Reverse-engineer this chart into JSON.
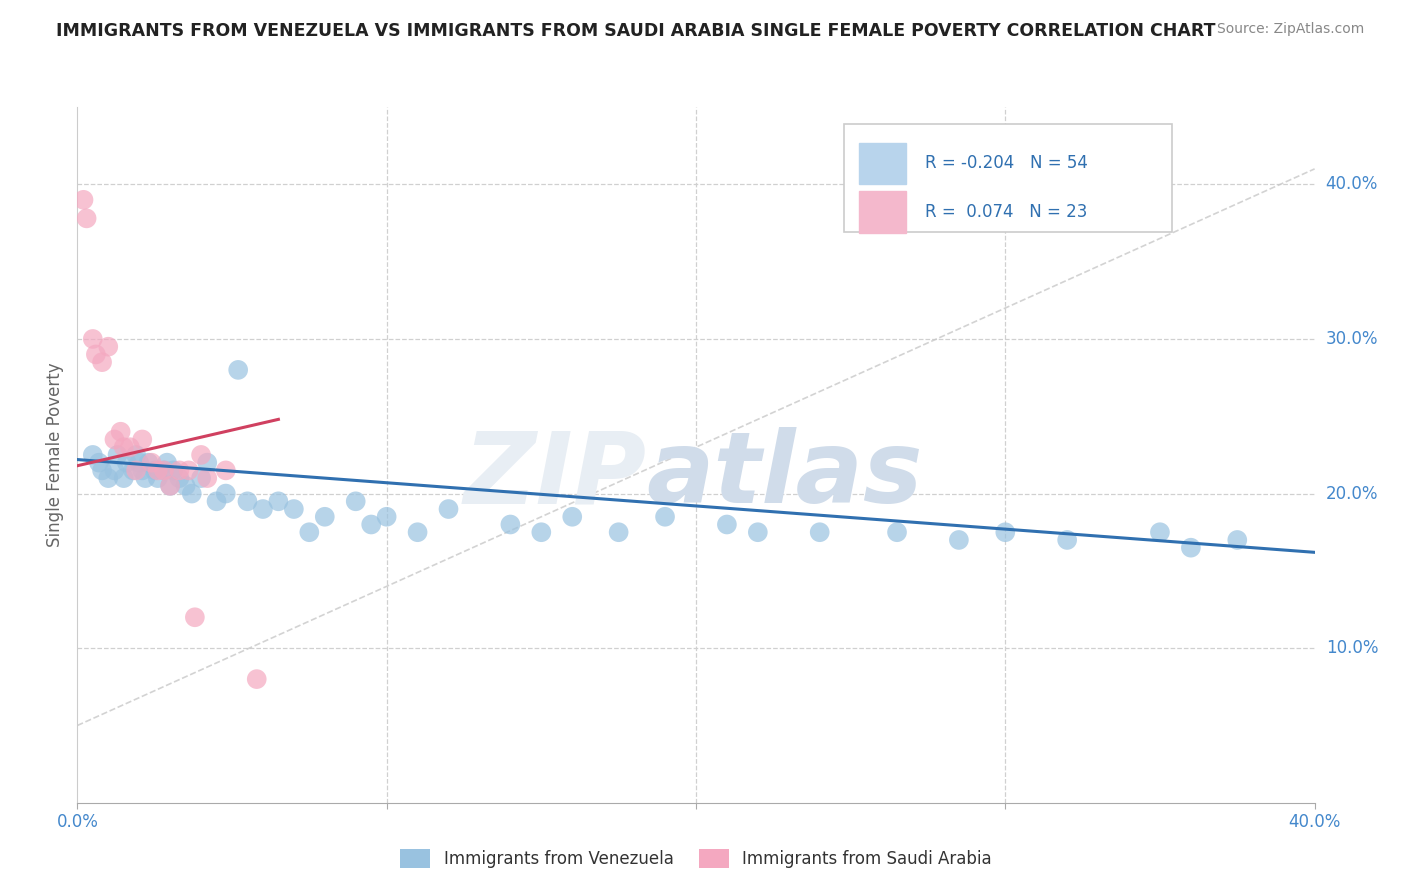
{
  "title": "IMMIGRANTS FROM VENEZUELA VS IMMIGRANTS FROM SAUDI ARABIA SINGLE FEMALE POVERTY CORRELATION CHART",
  "source": "Source: ZipAtlas.com",
  "ylabel": "Single Female Poverty",
  "xlim": [
    0,
    0.4
  ],
  "ylim": [
    0,
    0.45
  ],
  "xticks": [
    0.0,
    0.1,
    0.2,
    0.3,
    0.4
  ],
  "xtick_labels_bottom": [
    "0.0%",
    "",
    "",
    "",
    "40.0%"
  ],
  "yticks": [
    0.1,
    0.2,
    0.3,
    0.4
  ],
  "ytick_labels": [
    "10.0%",
    "20.0%",
    "30.0%",
    "40.0%"
  ],
  "venezuela_x": [
    0.005,
    0.007,
    0.008,
    0.01,
    0.012,
    0.013,
    0.015,
    0.016,
    0.018,
    0.019,
    0.02,
    0.021,
    0.022,
    0.023,
    0.025,
    0.026,
    0.028,
    0.029,
    0.03,
    0.031,
    0.033,
    0.035,
    0.037,
    0.04,
    0.042,
    0.045,
    0.048,
    0.052,
    0.055,
    0.06,
    0.065,
    0.07,
    0.075,
    0.08,
    0.09,
    0.095,
    0.1,
    0.11,
    0.12,
    0.14,
    0.15,
    0.16,
    0.175,
    0.19,
    0.21,
    0.22,
    0.24,
    0.265,
    0.285,
    0.3,
    0.32,
    0.35,
    0.36,
    0.375
  ],
  "venezuela_y": [
    0.225,
    0.22,
    0.215,
    0.21,
    0.215,
    0.225,
    0.21,
    0.22,
    0.215,
    0.225,
    0.22,
    0.215,
    0.21,
    0.22,
    0.215,
    0.21,
    0.215,
    0.22,
    0.205,
    0.215,
    0.21,
    0.205,
    0.2,
    0.21,
    0.22,
    0.195,
    0.2,
    0.28,
    0.195,
    0.19,
    0.195,
    0.19,
    0.175,
    0.185,
    0.195,
    0.18,
    0.185,
    0.175,
    0.19,
    0.18,
    0.175,
    0.185,
    0.175,
    0.185,
    0.18,
    0.175,
    0.175,
    0.175,
    0.17,
    0.175,
    0.17,
    0.175,
    0.165,
    0.17
  ],
  "saudi_x": [
    0.002,
    0.003,
    0.005,
    0.006,
    0.008,
    0.01,
    0.012,
    0.014,
    0.015,
    0.017,
    0.019,
    0.021,
    0.024,
    0.026,
    0.028,
    0.03,
    0.033,
    0.036,
    0.038,
    0.04,
    0.042,
    0.048,
    0.058
  ],
  "saudi_y": [
    0.39,
    0.378,
    0.3,
    0.29,
    0.285,
    0.295,
    0.235,
    0.24,
    0.23,
    0.23,
    0.215,
    0.235,
    0.22,
    0.215,
    0.215,
    0.205,
    0.215,
    0.215,
    0.12,
    0.225,
    0.21,
    0.215,
    0.08
  ],
  "blue_line_x": [
    0.0,
    0.4
  ],
  "blue_line_y": [
    0.222,
    0.162
  ],
  "pink_line_x": [
    0.0,
    0.065
  ],
  "pink_line_y": [
    0.218,
    0.248
  ],
  "dashed_line_x": [
    0.0,
    0.4
  ],
  "dashed_line_y": [
    0.05,
    0.41
  ],
  "blue_color": "#99c2e0",
  "pink_color": "#f4a8c0",
  "blue_line_color": "#3070b0",
  "pink_line_color": "#d04060",
  "dashed_color": "#c8c8c8",
  "background_color": "#ffffff",
  "grid_color": "#d0d0d0",
  "tick_label_color": "#4488cc",
  "title_color": "#222222",
  "source_color": "#888888",
  "ylabel_color": "#666666",
  "watermark_zip_color": "#e8eef4",
  "watermark_atlas_color": "#d0dcea"
}
